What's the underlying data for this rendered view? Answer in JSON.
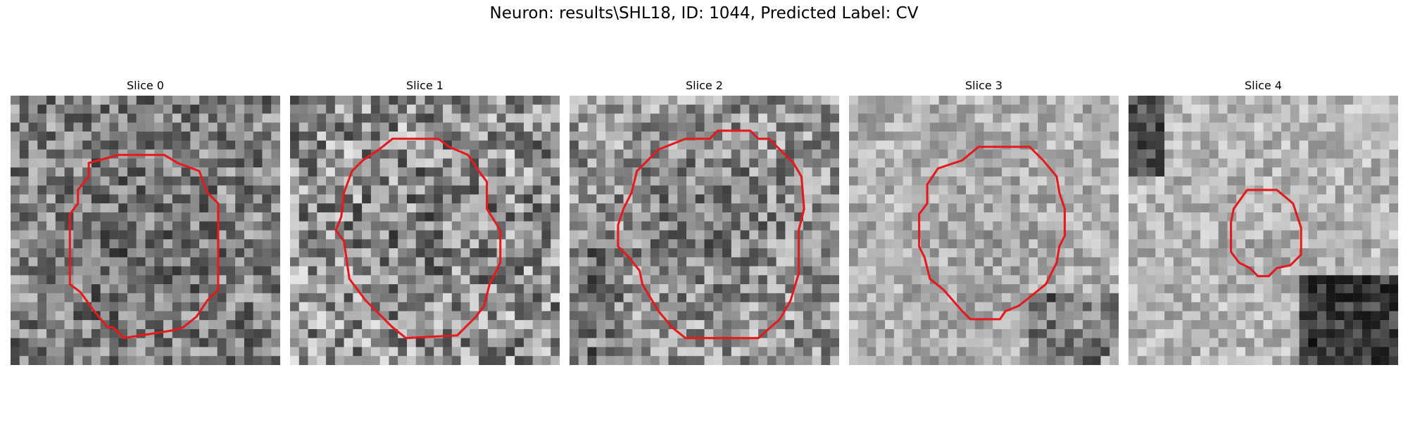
{
  "figure": {
    "title": "Neuron: results\\SHL18, ID: 1044, Predicted Label: CV"
  },
  "contour_color": "#e41a1c",
  "panels": [
    {
      "title": "Slice 0",
      "base": 128,
      "darkness": 0.25,
      "noise": 70
    },
    {
      "title": "Slice 1",
      "base": 145,
      "darkness": 0.2,
      "noise": 85
    },
    {
      "title": "Slice 2",
      "base": 150,
      "darkness": 0.45,
      "noise": 70
    },
    {
      "title": "Slice 3",
      "base": 175,
      "darkness": 0.15,
      "noise": 45
    },
    {
      "title": "Slice 4",
      "base": 180,
      "darkness": 0.1,
      "noise": 45
    }
  ]
}
